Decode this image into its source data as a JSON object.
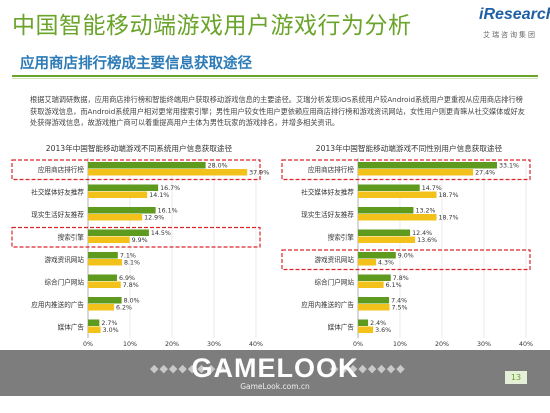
{
  "page": {
    "title": "中国智能移动端游戏用户游戏行为分析",
    "subtitle": "应用商店排行榜成主要信息获取途径",
    "paragraph": "根据艾瑞调研数据，应用商店排行榜和智能终端用户获取移动游戏信息的主要途径。艾瑞分析发现iOS系统用户较Android系统用户更重视从应用商店排行榜获取游戏信息，而Android系统用户相对更常用搜索引擎；男性用户较女性用户更依赖应用商店排行榜和游戏资讯网站，女性用户则更青睐从社交媒体或好友处获得游戏信息，故游戏推广商可以着重提高用户主体为男性玩家的游戏排名，并增多相关资讯。",
    "page_number": "13",
    "logo": {
      "brand": "iResearch",
      "sub": "艾瑞咨询集团"
    },
    "watermark": {
      "text": "GAMELOOK",
      "url": "GameLook.com.cn"
    },
    "colors": {
      "title": "#6aa42a",
      "subtitle": "#2c7bb6",
      "bar_dark": "#5e9a1e",
      "bar_light": "#f2c21b",
      "highlight": "#d9252a"
    }
  },
  "chart_data": [
    {
      "type": "bar",
      "orientation": "horizontal",
      "title": "2013年中国智能移动端游戏不同系统用户信息获取途径",
      "categories": [
        "应用商店排行榜",
        "社交媒体好友推荐",
        "现实生活好友推荐",
        "搜索引擎",
        "游戏资讯网站",
        "综合门户网站",
        "应用内推送的广告",
        "媒体广告"
      ],
      "series": [
        {
          "name": "Android系统用户（%）",
          "values": [
            28.0,
            16.7,
            16.1,
            14.5,
            7.1,
            6.9,
            8.0,
            2.7
          ]
        },
        {
          "name": "iOS系统用户（%）",
          "values": [
            37.9,
            14.1,
            12.9,
            9.9,
            8.1,
            7.8,
            6.2,
            3.0
          ]
        }
      ],
      "value_labels": [
        [
          "28.0%",
          "16.7%",
          "16.1%",
          "14.5%",
          "7.1%",
          "6.9%",
          "8.0%",
          "2.7%"
        ],
        [
          "37.9%",
          "14.1%",
          "12.9%",
          "9.9%",
          "8.1%",
          "7.8%",
          "6.2%",
          "3.0%"
        ]
      ],
      "highlighted": [
        "应用商店排行榜",
        "搜索引擎"
      ],
      "xlim": [
        0,
        40
      ],
      "xticks": [
        "0%",
        "10%",
        "20%",
        "30%",
        "40%"
      ]
    },
    {
      "type": "bar",
      "orientation": "horizontal",
      "title": "2013年中国智能移动端游戏不同性别用户信息获取途径",
      "categories": [
        "应用商店排行榜",
        "社交媒体好友推荐",
        "现实生活好友推荐",
        "搜索引擎",
        "游戏资讯网站",
        "综合门户网站",
        "应用内推送的广告",
        "媒体广告"
      ],
      "series": [
        {
          "name": "男（%）",
          "values": [
            33.1,
            14.7,
            13.2,
            12.4,
            9.0,
            7.8,
            7.4,
            2.4
          ]
        },
        {
          "name": "女（%）",
          "values": [
            27.4,
            18.7,
            18.7,
            13.6,
            4.3,
            6.1,
            7.5,
            3.6
          ]
        }
      ],
      "value_labels": [
        [
          "33.1%",
          "14.7%",
          "13.2%",
          "12.4%",
          "9.0%",
          "7.8%",
          "7.4%",
          "2.4%"
        ],
        [
          "27.4%",
          "18.7%",
          "18.7%",
          "13.6%",
          "4.3%",
          "6.1%",
          "7.5%",
          "3.6%"
        ]
      ],
      "highlighted": [
        "应用商店排行榜",
        "游戏资讯网站"
      ],
      "xlim": [
        0,
        40
      ],
      "xticks": [
        "0%",
        "10%",
        "20%",
        "30%",
        "40%"
      ]
    }
  ]
}
